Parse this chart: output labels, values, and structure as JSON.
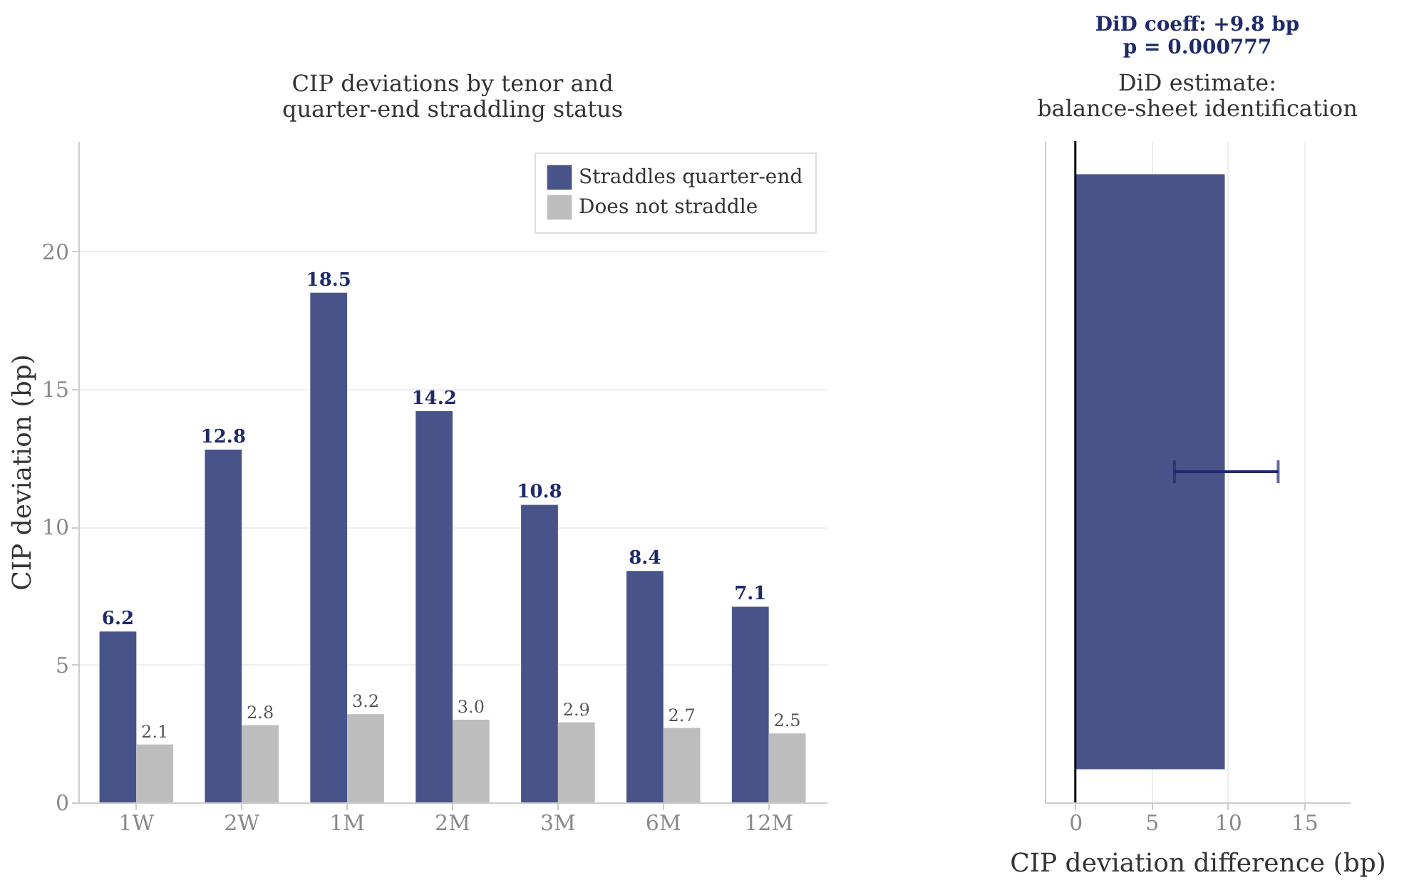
{
  "chart_data": [
    {
      "type": "bar",
      "title": "CIP deviations by tenor and\nquarter-end straddling status",
      "ylabel": "CIP deviation (bp)",
      "categories": [
        "1W",
        "2W",
        "1M",
        "2M",
        "3M",
        "6M",
        "12M"
      ],
      "series": [
        {
          "name": "Straddles quarter-end",
          "color": "#48538a",
          "values": [
            6.2,
            12.8,
            18.5,
            14.2,
            10.8,
            8.4,
            7.1
          ],
          "value_labels": [
            "6.2",
            "12.8",
            "18.5",
            "14.2",
            "10.8",
            "8.4",
            "7.1"
          ]
        },
        {
          "name": "Does not straddle",
          "color": "#bdbdbd",
          "values": [
            2.1,
            2.8,
            3.2,
            3.0,
            2.9,
            2.7,
            2.5
          ],
          "value_labels": [
            "2.1",
            "2.8",
            "3.2",
            "3.0",
            "2.9",
            "2.7",
            "2.5"
          ]
        }
      ],
      "ylim": [
        0,
        24
      ],
      "yticks": [
        0,
        5,
        10,
        15,
        20
      ],
      "grid": "y",
      "legend": "top right"
    },
    {
      "type": "bar",
      "orientation": "horizontal",
      "title": "DiD estimate:\nbalance-sheet identification",
      "xlabel": "CIP deviation difference (bp)",
      "annotations": [
        "DiD coeff: +9.8 bp",
        "p = 0.000777"
      ],
      "categories": [
        null
      ],
      "series": [
        {
          "color": "#48538a",
          "values": [
            9.8
          ],
          "errors": [
            [
              6.5,
              13.3
            ]
          ]
        }
      ],
      "xlim": [
        -2,
        18
      ],
      "xticks": [
        0,
        5,
        10,
        15
      ],
      "grid": "x",
      "tick_labels": "x",
      "ref_lines": [
        {
          "axis": "x",
          "value": 0,
          "color": "#000000"
        }
      ]
    }
  ]
}
